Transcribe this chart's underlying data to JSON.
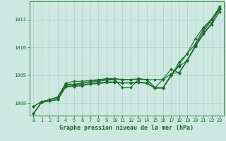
{
  "xlabel": "Graphe pression niveau de la mer (hPa)",
  "bg_color": "#cce8e0",
  "line_color": "#1a6b2a",
  "grid_color": "#aad4c8",
  "ylim": [
    1007.55,
    1011.65
  ],
  "xlim": [
    -0.5,
    23.5
  ],
  "yticks": [
    1008,
    1009,
    1010,
    1011
  ],
  "xticks": [
    0,
    1,
    2,
    3,
    4,
    5,
    6,
    7,
    8,
    9,
    10,
    11,
    12,
    13,
    14,
    15,
    16,
    17,
    18,
    19,
    20,
    21,
    22,
    23
  ],
  "series": [
    [
      1007.62,
      1008.05,
      1008.12,
      1008.18,
      1008.65,
      1008.65,
      1008.7,
      1008.75,
      1008.78,
      1008.82,
      1008.84,
      1008.84,
      1008.84,
      1008.85,
      1008.84,
      1008.84,
      1008.85,
      1009.05,
      1009.1,
      1009.55,
      1010.05,
      1010.5,
      1010.88,
      1011.38
    ],
    [
      1007.88,
      1008.05,
      1008.12,
      1008.22,
      1008.68,
      1008.68,
      1008.72,
      1008.78,
      1008.82,
      1008.86,
      1008.85,
      1008.55,
      1008.55,
      1008.86,
      1008.85,
      1008.56,
      1008.55,
      1009.02,
      1009.32,
      1009.53,
      1010.08,
      1010.58,
      1010.98,
      1011.48
    ],
    [
      1007.88,
      1008.05,
      1008.12,
      1008.22,
      1008.72,
      1008.78,
      1008.78,
      1008.82,
      1008.84,
      1008.88,
      1008.88,
      1008.85,
      1008.84,
      1008.88,
      1008.84,
      1008.56,
      1008.54,
      1008.98,
      1009.48,
      1009.78,
      1010.12,
      1010.68,
      1010.98,
      1011.38
    ],
    [
      1007.62,
      1008.02,
      1008.08,
      1008.12,
      1008.58,
      1008.6,
      1008.62,
      1008.68,
      1008.7,
      1008.73,
      1008.73,
      1008.72,
      1008.72,
      1008.73,
      1008.71,
      1008.54,
      1008.86,
      1009.22,
      1009.08,
      1009.52,
      1010.02,
      1010.48,
      1010.82,
      1011.28
    ],
    [
      1007.62,
      1008.02,
      1008.08,
      1008.12,
      1008.6,
      1008.62,
      1008.65,
      1008.7,
      1008.73,
      1008.76,
      1008.76,
      1008.73,
      1008.73,
      1008.76,
      1008.73,
      1008.53,
      1008.54,
      1008.98,
      1009.38,
      1009.78,
      1010.32,
      1010.72,
      1011.02,
      1011.42
    ]
  ],
  "marker": "D",
  "markersize": 2.0,
  "linewidth": 0.8,
  "tick_fontsize": 5.0,
  "label_fontsize": 6.0,
  "label_fontweight": "bold"
}
